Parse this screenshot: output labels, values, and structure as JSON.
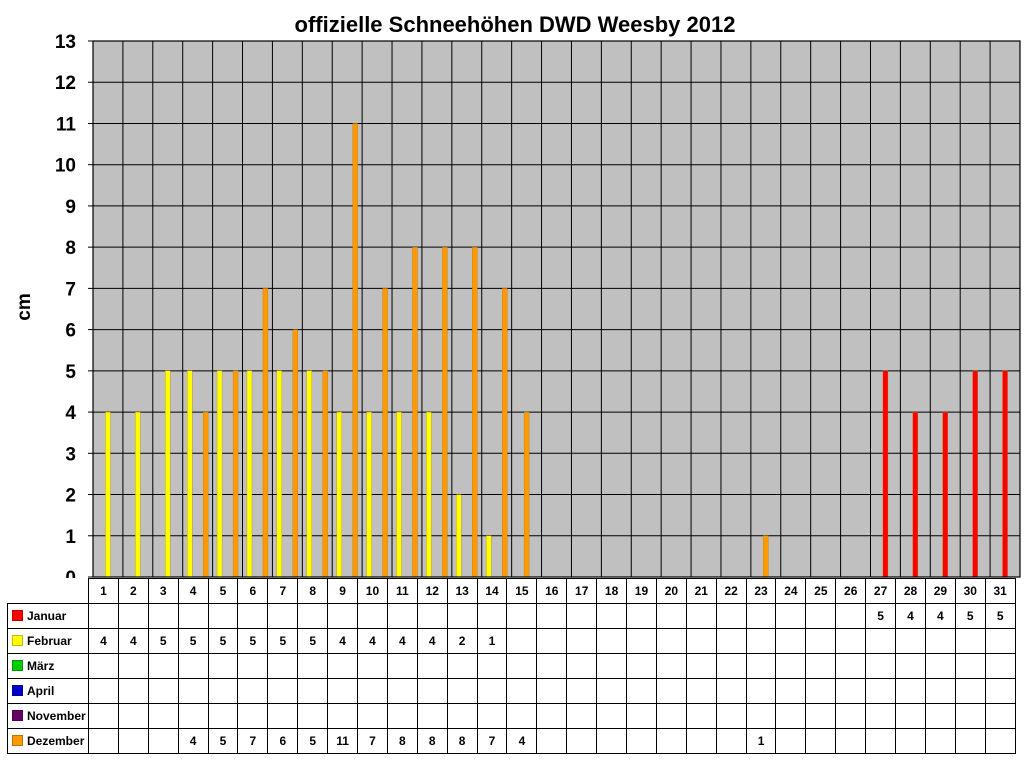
{
  "chart_data": {
    "type": "bar",
    "title": "offizielle Schneehöhen DWD Weesby 2012",
    "ylabel": "cm",
    "xlabel": "",
    "ylim": [
      0,
      13
    ],
    "yticks": [
      "0",
      "1",
      "2",
      "3",
      "4",
      "5",
      "6",
      "7",
      "8",
      "9",
      "10",
      "11",
      "12",
      "13"
    ],
    "grid": true,
    "legend_position": "table-left",
    "categories": [
      "1",
      "2",
      "3",
      "4",
      "5",
      "6",
      "7",
      "8",
      "9",
      "10",
      "11",
      "12",
      "13",
      "14",
      "15",
      "16",
      "17",
      "18",
      "19",
      "20",
      "21",
      "22",
      "23",
      "24",
      "25",
      "26",
      "27",
      "28",
      "29",
      "30",
      "31"
    ],
    "series": [
      {
        "name": "Januar",
        "color": "#ff0000",
        "values": [
          null,
          null,
          null,
          null,
          null,
          null,
          null,
          null,
          null,
          null,
          null,
          null,
          null,
          null,
          null,
          null,
          null,
          null,
          null,
          null,
          null,
          null,
          null,
          null,
          null,
          null,
          5,
          4,
          4,
          5,
          5
        ]
      },
      {
        "name": "Februar",
        "color": "#ffff00",
        "values": [
          4,
          4,
          5,
          5,
          5,
          5,
          5,
          5,
          4,
          4,
          4,
          4,
          2,
          1,
          null,
          null,
          null,
          null,
          null,
          null,
          null,
          null,
          null,
          null,
          null,
          null,
          null,
          null,
          null,
          null,
          null
        ]
      },
      {
        "name": "März",
        "color": "#00cc00",
        "values": [
          null,
          null,
          null,
          null,
          null,
          null,
          null,
          null,
          null,
          null,
          null,
          null,
          null,
          null,
          null,
          null,
          null,
          null,
          null,
          null,
          null,
          null,
          null,
          null,
          null,
          null,
          null,
          null,
          null,
          null,
          null
        ]
      },
      {
        "name": "April",
        "color": "#0000cc",
        "values": [
          null,
          null,
          null,
          null,
          null,
          null,
          null,
          null,
          null,
          null,
          null,
          null,
          null,
          null,
          null,
          null,
          null,
          null,
          null,
          null,
          null,
          null,
          null,
          null,
          null,
          null,
          null,
          null,
          null,
          null,
          null
        ]
      },
      {
        "name": "November",
        "color": "#660066",
        "values": [
          null,
          null,
          null,
          null,
          null,
          null,
          null,
          null,
          null,
          null,
          null,
          null,
          null,
          null,
          null,
          null,
          null,
          null,
          null,
          null,
          null,
          null,
          null,
          null,
          null,
          null,
          null,
          null,
          null,
          null,
          null
        ]
      },
      {
        "name": "Dezember",
        "color": "#ff9900",
        "values": [
          null,
          null,
          null,
          4,
          5,
          7,
          6,
          5,
          11,
          7,
          8,
          8,
          8,
          7,
          4,
          null,
          null,
          null,
          null,
          null,
          null,
          null,
          1,
          null,
          null,
          null,
          null,
          null,
          null,
          null,
          null
        ]
      }
    ]
  }
}
